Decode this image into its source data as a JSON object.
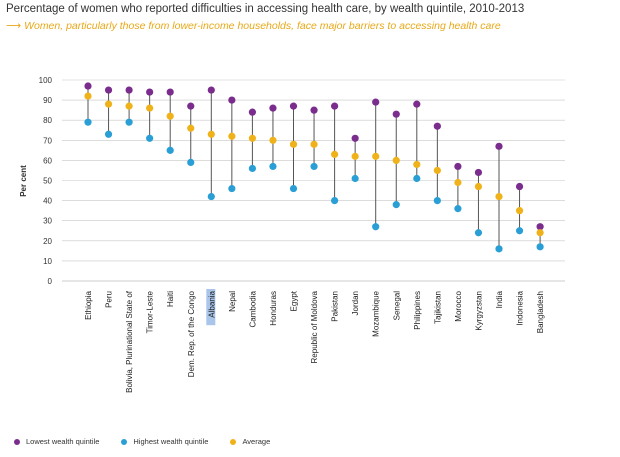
{
  "title": "Percentage of women who reported difficulties in accessing health care, by wealth quintile, 2010-2013",
  "subtitle": "Women, particularly those from lower-income households, face major barriers to accessing health care",
  "colors": {
    "lowest": "#7b2d8e",
    "highest": "#2a9fd6",
    "average": "#f0b21a",
    "line": "#555555",
    "grid": "#c8c8c8",
    "highlight": "#a9c6ea"
  },
  "chart_data": {
    "type": "scatter",
    "title": "Percentage of women who reported difficulties in accessing health care, by wealth quintile, 2010-2013",
    "xlabel": "",
    "ylabel": "Per cent",
    "ylim": [
      0,
      100
    ],
    "yticks": [
      0,
      10,
      20,
      30,
      40,
      50,
      60,
      70,
      80,
      90,
      100
    ],
    "highlighted_category": "Albania",
    "categories": [
      "Ethiopia",
      "Peru",
      "Bolivia, Plurinational State of",
      "Timor-Leste",
      "Haiti",
      "Dem. Rep. of the Congo",
      "Albania",
      "Nepal",
      "Cambodia",
      "Honduras",
      "Egypt",
      "Republic of Moldova",
      "Pakistan",
      "Jordan",
      "Mozambique",
      "Senegal",
      "Philippines",
      "Tajikistan",
      "Morocco",
      "Kyrgyzstan",
      "India",
      "Indonesia",
      "Bangladesh"
    ],
    "series": [
      {
        "name": "Lowest wealth quintile",
        "key": "lowest",
        "values": [
          97,
          95,
          95,
          94,
          94,
          87,
          95,
          90,
          84,
          86,
          87,
          85,
          87,
          71,
          89,
          83,
          88,
          77,
          57,
          54,
          67,
          47,
          27
        ]
      },
      {
        "name": "Highest wealth quintile",
        "key": "highest",
        "values": [
          79,
          73,
          79,
          71,
          65,
          59,
          42,
          46,
          56,
          57,
          46,
          57,
          40,
          51,
          27,
          38,
          51,
          40,
          36,
          24,
          16,
          25,
          17
        ]
      },
      {
        "name": "Average",
        "key": "average",
        "values": [
          92,
          88,
          87,
          86,
          82,
          76,
          73,
          72,
          71,
          70,
          68,
          68,
          63,
          62,
          62,
          60,
          58,
          55,
          49,
          47,
          42,
          35,
          24
        ]
      }
    ]
  },
  "legend": [
    {
      "label": "Lowest wealth quintile",
      "color": "#7b2d8e"
    },
    {
      "label": "Highest wealth quintile",
      "color": "#2a9fd6"
    },
    {
      "label": "Average",
      "color": "#f0b21a"
    }
  ]
}
